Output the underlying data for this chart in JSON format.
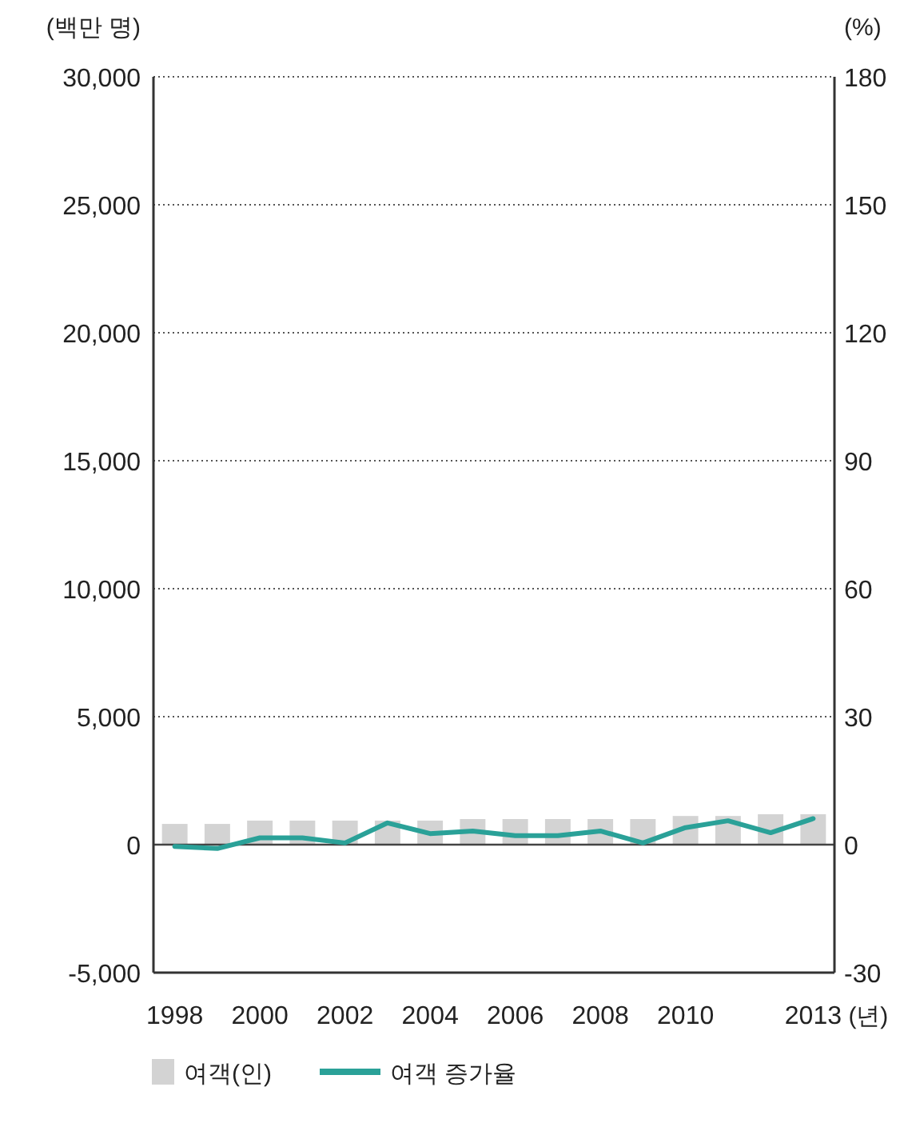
{
  "chart_data": {
    "type": "bar",
    "ylabel": "(백만 명)",
    "y2label": "(%)",
    "xlabel": "(년)",
    "categories": [
      "1998",
      null,
      "2000",
      null,
      "2002",
      null,
      "2004",
      null,
      "2006",
      null,
      "2008",
      null,
      "2010",
      null,
      null,
      "2013"
    ],
    "series": [
      {
        "name": "여객(인)",
        "color": "#d3d3d3",
        "values": [
          810,
          810,
          940,
          940,
          940,
          940,
          940,
          1000,
          1000,
          1000,
          1000,
          1000,
          1120,
          1120,
          1190,
          1190
        ]
      },
      {
        "name": "여객 증가율",
        "type": "line",
        "axis": "y2",
        "color": "#2aa198",
        "values": [
          -0.4,
          -0.9,
          1.6,
          1.6,
          0.4,
          5.1,
          2.6,
          3.2,
          2.1,
          2.1,
          3.2,
          0.4,
          4.0,
          5.6,
          2.8,
          6.1
        ]
      }
    ],
    "ylim": [
      -5000,
      30000
    ],
    "yticks": [
      {
        "value": -5000,
        "label": "-5,000"
      },
      0,
      {
        "value": 5000,
        "label": "5,000"
      },
      {
        "value": 10000,
        "label": "10,000"
      },
      {
        "value": 15000,
        "label": "15,000"
      },
      {
        "value": 20000,
        "label": "20,000"
      },
      {
        "value": 25000,
        "label": "25,000"
      },
      {
        "value": 30000,
        "label": "30,000"
      }
    ],
    "y2lim": [
      -30,
      180
    ],
    "y2ticks": [
      -30,
      0,
      30,
      60,
      90,
      120,
      150,
      180
    ],
    "grid": "y",
    "legend": "bottom left"
  }
}
